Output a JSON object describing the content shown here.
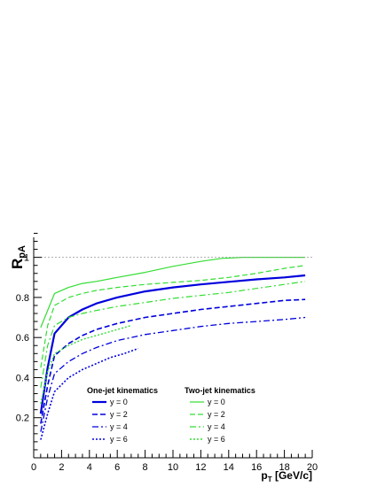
{
  "chart_data": {
    "type": "line",
    "title": "",
    "xlabel": "p_T [GeV/c]",
    "ylabel": "R_pA",
    "xlim": [
      0,
      20
    ],
    "ylim": [
      0,
      1.1
    ],
    "x_ticks": [
      "0",
      "2",
      "4",
      "6",
      "8",
      "10",
      "12",
      "14",
      "16",
      "18",
      "20"
    ],
    "y_ticks": [
      "0.2",
      "0.4",
      "0.6",
      "0.8",
      "1"
    ],
    "reference_line": {
      "y": 1.0,
      "style": "dotted",
      "color": "#999999"
    },
    "grid": false,
    "legend": [
      {
        "title": "One-jet kinematics",
        "placement": "bottom-left",
        "entries": [
          "y = 0",
          "y = 2",
          "y = 4",
          "y = 6"
        ]
      },
      {
        "title": "Two-jet kinematics",
        "placement": "bottom-right",
        "entries": [
          "y = 0",
          "y = 2",
          "y = 4",
          "y = 6"
        ]
      }
    ],
    "series": [
      {
        "group": "One-jet kinematics",
        "name": "y = 0",
        "color": "#0000dd",
        "style": "solid",
        "width": 2.2,
        "x": [
          0.5,
          1.0,
          1.5,
          2.5,
          3.5,
          4.5,
          6,
          8,
          10,
          12,
          14,
          16,
          18,
          19.5
        ],
        "y": [
          0.22,
          0.45,
          0.62,
          0.7,
          0.74,
          0.77,
          0.8,
          0.83,
          0.85,
          0.865,
          0.878,
          0.89,
          0.9,
          0.91
        ]
      },
      {
        "group": "One-jet kinematics",
        "name": "y = 2",
        "color": "#0000dd",
        "style": "dashed",
        "width": 1.6,
        "x": [
          0.5,
          1.0,
          1.5,
          2.5,
          3.5,
          4.5,
          6,
          8,
          10,
          12,
          14,
          16,
          18,
          19.5
        ],
        "y": [
          0.17,
          0.36,
          0.51,
          0.57,
          0.61,
          0.64,
          0.67,
          0.7,
          0.72,
          0.74,
          0.755,
          0.77,
          0.785,
          0.79
        ]
      },
      {
        "group": "One-jet kinematics",
        "name": "y = 4",
        "color": "#0000dd",
        "style": "dashdot",
        "width": 1.3,
        "x": [
          0.5,
          1.0,
          1.5,
          2.5,
          3.5,
          4.5,
          6,
          8,
          10,
          12,
          14,
          16,
          18,
          19.5
        ],
        "y": [
          0.13,
          0.3,
          0.42,
          0.48,
          0.52,
          0.55,
          0.585,
          0.615,
          0.635,
          0.655,
          0.67,
          0.68,
          0.69,
          0.7
        ]
      },
      {
        "group": "One-jet kinematics",
        "name": "y = 6",
        "color": "#0000dd",
        "style": "dotted",
        "width": 1.6,
        "x": [
          0.5,
          1.0,
          1.5,
          2.5,
          3.5,
          4.5,
          5.5,
          6.5,
          7.5
        ],
        "y": [
          0.09,
          0.22,
          0.33,
          0.4,
          0.44,
          0.47,
          0.5,
          0.52,
          0.545
        ]
      },
      {
        "group": "Two-jet kinematics",
        "name": "y = 0",
        "color": "#33dd33",
        "style": "solid",
        "width": 1.2,
        "x": [
          0.5,
          1.5,
          2.5,
          3.5,
          4.5,
          6,
          8,
          10,
          12,
          13.5,
          15,
          17,
          19.5
        ],
        "y": [
          0.65,
          0.82,
          0.85,
          0.87,
          0.88,
          0.9,
          0.925,
          0.955,
          0.98,
          0.995,
          1.0,
          1.0,
          1.0
        ]
      },
      {
        "group": "Two-jet kinematics",
        "name": "y = 2",
        "color": "#33dd33",
        "style": "dashed",
        "width": 1.2,
        "x": [
          0.5,
          1.0,
          1.5,
          2.5,
          3.5,
          4.5,
          6,
          8,
          10,
          12,
          14,
          16,
          18,
          19.5
        ],
        "y": [
          0.45,
          0.66,
          0.76,
          0.8,
          0.82,
          0.835,
          0.85,
          0.865,
          0.875,
          0.885,
          0.9,
          0.92,
          0.945,
          0.96
        ]
      },
      {
        "group": "Two-jet kinematics",
        "name": "y = 4",
        "color": "#33dd33",
        "style": "dashdot",
        "width": 1.2,
        "x": [
          0.5,
          1.0,
          1.5,
          2.5,
          3.5,
          4.5,
          6,
          8,
          10,
          12,
          14,
          16,
          18,
          19.5
        ],
        "y": [
          0.35,
          0.56,
          0.66,
          0.7,
          0.72,
          0.735,
          0.755,
          0.775,
          0.795,
          0.81,
          0.825,
          0.845,
          0.865,
          0.88
        ]
      },
      {
        "group": "Two-jet kinematics",
        "name": "y = 6",
        "color": "#33dd33",
        "style": "dotted",
        "width": 1.4,
        "x": [
          0.5,
          1.0,
          1.5,
          2.5,
          3.5,
          4.5,
          5.5,
          6.5,
          7.0
        ],
        "y": [
          0.27,
          0.43,
          0.52,
          0.56,
          0.59,
          0.61,
          0.63,
          0.65,
          0.66
        ]
      }
    ]
  }
}
